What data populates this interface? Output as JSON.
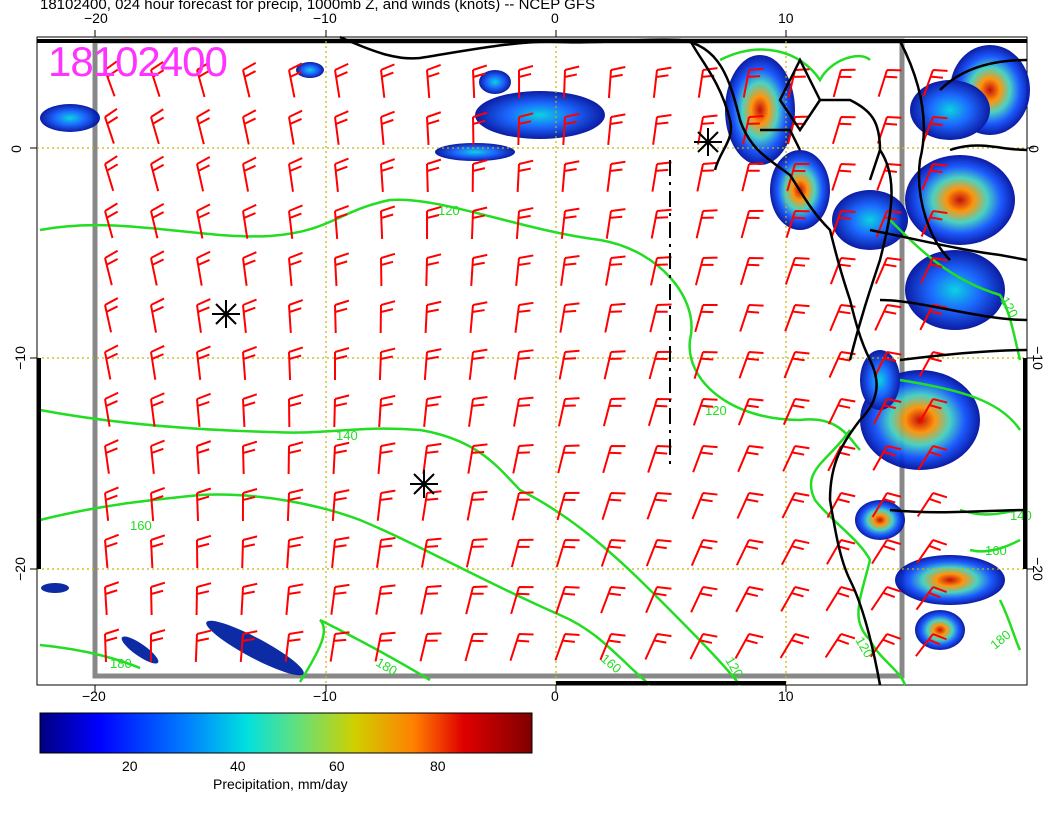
{
  "title": "18102400, 024 hour forecast for precip, 1000mb Z, and winds (knots) -- NCEP GFS",
  "stamp": "18102400",
  "top_ticks": [
    "−20",
    "−10",
    "0",
    "10"
  ],
  "bottom_ticks": [
    "−20",
    "−10",
    "0",
    "10"
  ],
  "left_ticks": [
    "0",
    "−10",
    "−20"
  ],
  "right_ticks": [
    "0",
    "−10",
    "−20"
  ],
  "colorbar": {
    "label": "Precipitation, mm/day",
    "ticks": [
      "20",
      "40",
      "60",
      "80"
    ],
    "range": [
      0,
      100
    ],
    "colors": [
      "#00007f",
      "#0000ff",
      "#0080ff",
      "#00e0e0",
      "#60e080",
      "#d0d000",
      "#ff8000",
      "#e00000",
      "#7f0000"
    ]
  },
  "contours": {
    "color": "#22dd22",
    "labels": [
      "120",
      "120",
      "140",
      "160",
      "180",
      "180",
      "160",
      "120",
      "160",
      "140",
      "120",
      "180",
      "120"
    ]
  },
  "colors": {
    "barbs": "#ff0000",
    "grid": "#c8b400",
    "coast": "#000000",
    "stamp": "#ff33ff"
  }
}
